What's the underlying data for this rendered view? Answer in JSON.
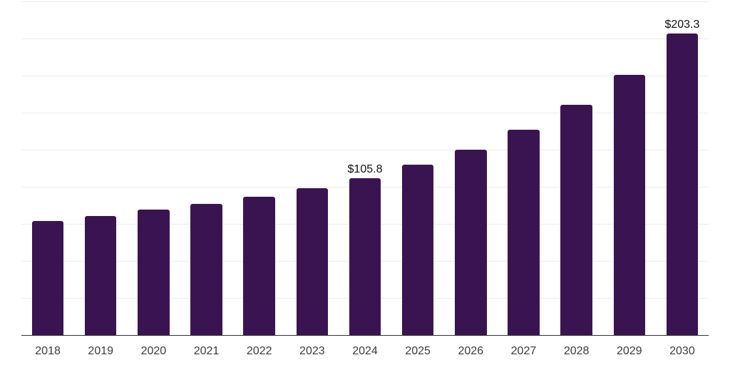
{
  "chart_data": {
    "type": "bar",
    "title": "",
    "xlabel": "",
    "ylabel": "",
    "categories": [
      "2018",
      "2019",
      "2020",
      "2021",
      "2022",
      "2023",
      "2024",
      "2025",
      "2026",
      "2027",
      "2028",
      "2029",
      "2030"
    ],
    "values": [
      77.0,
      80.4,
      84.7,
      88.8,
      93.4,
      99.2,
      105.8,
      114.8,
      124.9,
      138.4,
      155.5,
      175.6,
      203.3
    ],
    "point_labels": [
      {
        "index": 6,
        "text": "$105.8"
      },
      {
        "index": 12,
        "text": "$203.3"
      }
    ],
    "ylim": [
      0,
      225
    ],
    "gridline_step": 25,
    "grid": "horizontal-only",
    "y_axis_tick_labels_shown": false,
    "legend": "none",
    "colors": {
      "bar": "#3a1450",
      "gridline": "#ededed",
      "axis": "#333333",
      "tick_label": "#3c3c3c",
      "value_label": "#111111",
      "background": "#ffffff"
    }
  }
}
